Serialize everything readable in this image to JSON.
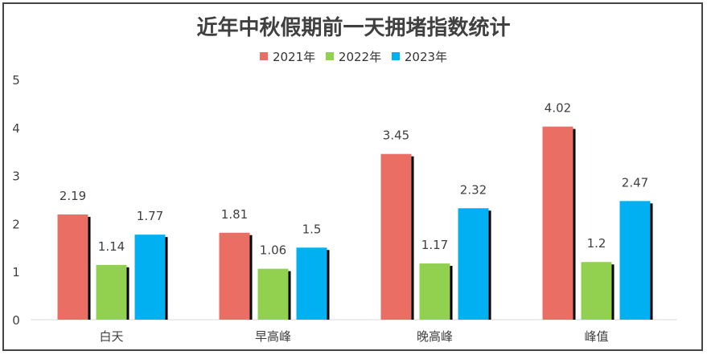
{
  "chart_data": {
    "type": "bar",
    "title": "近年中秋假期前一天拥堵指数统计",
    "categories": [
      "白天",
      "早高峰",
      "晚高峰",
      "峰值"
    ],
    "series": [
      {
        "name": "2021年",
        "color": "#eb6e65",
        "values": [
          2.19,
          1.81,
          3.45,
          4.02
        ],
        "labels": [
          "2.19",
          "1.81",
          "3.45",
          "4.02"
        ]
      },
      {
        "name": "2022年",
        "color": "#92d050",
        "values": [
          1.14,
          1.06,
          1.17,
          1.2
        ],
        "labels": [
          "1.14",
          "1.06",
          "1.17",
          "1.2"
        ]
      },
      {
        "name": "2023年",
        "color": "#00b0f0",
        "values": [
          1.77,
          1.5,
          2.32,
          2.47
        ],
        "labels": [
          "1.77",
          "1.5",
          "2.32",
          "2.47"
        ]
      }
    ],
    "ylim": [
      0,
      5
    ],
    "yticks": [
      "0",
      "1",
      "2",
      "3",
      "4",
      "5"
    ],
    "xlabel": "",
    "ylabel": "",
    "grid": false,
    "legend_position": "top-center"
  }
}
